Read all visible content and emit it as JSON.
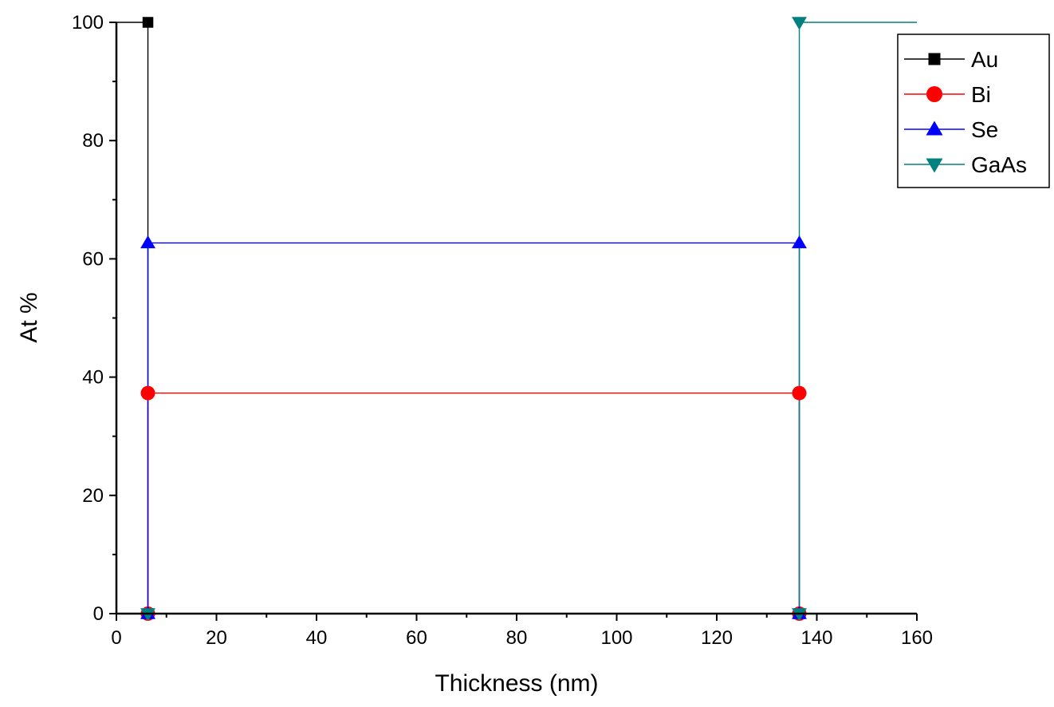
{
  "chart_data": {
    "type": "line",
    "title": "",
    "xlabel": "Thickness (nm)",
    "ylabel": "At %",
    "xlim": [
      0,
      160
    ],
    "ylim": [
      0,
      100
    ],
    "x_ticks": [
      0,
      20,
      40,
      60,
      80,
      100,
      120,
      140,
      160
    ],
    "y_ticks": [
      0,
      20,
      40,
      60,
      80,
      100
    ],
    "grid": false,
    "legend_position": "top-right",
    "series": [
      {
        "name": "Au",
        "color": "#000000",
        "marker": "square",
        "points": [
          [
            0,
            0
          ],
          [
            0,
            100
          ],
          [
            6.3,
            100
          ],
          [
            6.3,
            0
          ],
          [
            136.5,
            0
          ],
          [
            136.5,
            0
          ],
          [
            160,
            0
          ]
        ]
      },
      {
        "name": "Bi",
        "color": "#ff0000",
        "marker": "circle",
        "points": [
          [
            0,
            0
          ],
          [
            6.3,
            0
          ],
          [
            6.3,
            37.3
          ],
          [
            136.5,
            37.3
          ],
          [
            136.5,
            0
          ],
          [
            160,
            0
          ]
        ]
      },
      {
        "name": "Se",
        "color": "#0000ff",
        "marker": "triangle-up",
        "points": [
          [
            0,
            0
          ],
          [
            6.3,
            0
          ],
          [
            6.3,
            62.7
          ],
          [
            136.5,
            62.7
          ],
          [
            136.5,
            0
          ],
          [
            160,
            0
          ]
        ]
      },
      {
        "name": "GaAs",
        "color": "#008080",
        "marker": "triangle-down",
        "points": [
          [
            0,
            0
          ],
          [
            6.3,
            0
          ],
          [
            136.5,
            0
          ],
          [
            136.5,
            100
          ],
          [
            160,
            100
          ]
        ]
      }
    ]
  }
}
